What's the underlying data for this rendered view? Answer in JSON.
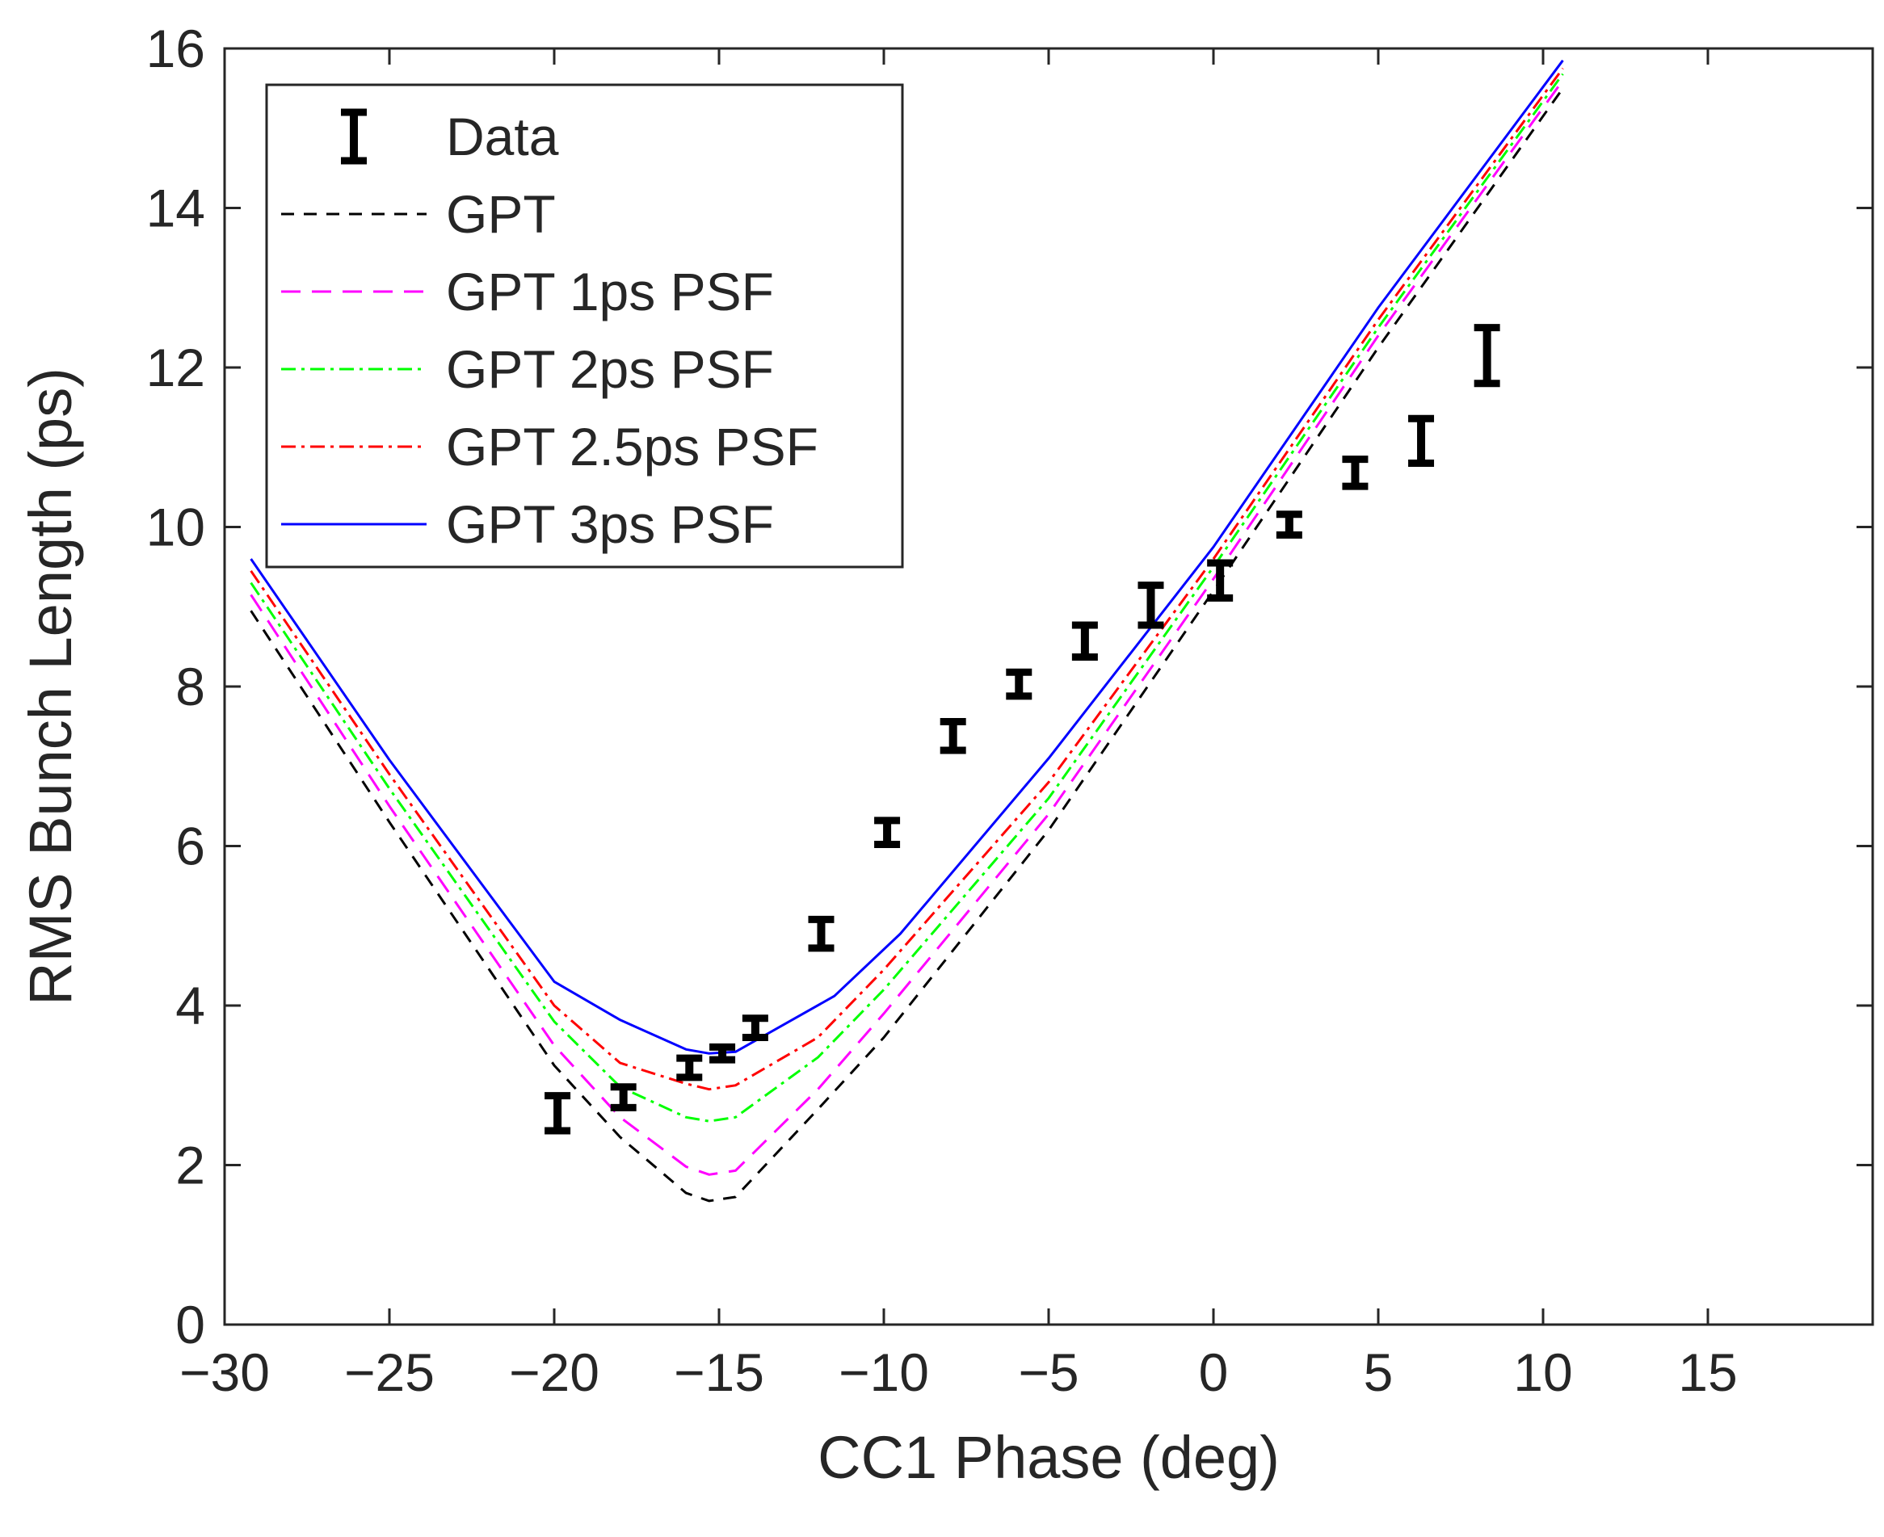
{
  "chart_data": {
    "type": "line",
    "title": "",
    "xlabel": "CC1 Phase (deg)",
    "ylabel": "RMS Bunch Length (ps)",
    "xlim": [
      -30,
      20
    ],
    "ylim": [
      0,
      16
    ],
    "xticks": [
      -30,
      -25,
      -20,
      -15,
      -10,
      -5,
      0,
      5,
      10,
      15
    ],
    "yticks": [
      0,
      2,
      4,
      6,
      8,
      10,
      12,
      14,
      16
    ],
    "xtick_labels": [
      "−30",
      "−25",
      "−20",
      "−15",
      "−10",
      "−5",
      "0",
      "5",
      "10",
      "15"
    ],
    "ytick_labels": [
      "0",
      "2",
      "4",
      "6",
      "8",
      "10",
      "12",
      "14",
      "16"
    ],
    "legend_position": "top-left",
    "errorbar_series": {
      "name": "Data",
      "color": "#000000",
      "points": [
        {
          "x": -19.9,
          "y": 2.65,
          "err": 0.22
        },
        {
          "x": -17.9,
          "y": 2.85,
          "err": 0.13
        },
        {
          "x": -15.9,
          "y": 3.22,
          "err": 0.12
        },
        {
          "x": -14.9,
          "y": 3.4,
          "err": 0.08
        },
        {
          "x": -13.9,
          "y": 3.72,
          "err": 0.12
        },
        {
          "x": -11.9,
          "y": 4.9,
          "err": 0.18
        },
        {
          "x": -9.9,
          "y": 6.17,
          "err": 0.15
        },
        {
          "x": -7.9,
          "y": 7.38,
          "err": 0.18
        },
        {
          "x": -5.9,
          "y": 8.03,
          "err": 0.15
        },
        {
          "x": -3.9,
          "y": 8.57,
          "err": 0.2
        },
        {
          "x": -1.9,
          "y": 9.02,
          "err": 0.25
        },
        {
          "x": 0.2,
          "y": 9.33,
          "err": 0.22
        },
        {
          "x": 2.3,
          "y": 10.03,
          "err": 0.13
        },
        {
          "x": 4.3,
          "y": 10.68,
          "err": 0.17
        },
        {
          "x": 6.3,
          "y": 11.08,
          "err": 0.28
        },
        {
          "x": 8.3,
          "y": 12.15,
          "err": 0.35
        }
      ]
    },
    "series": [
      {
        "name": "GPT",
        "color": "#000000",
        "dash": "16,12",
        "x": [
          -29.2,
          -25,
          -20,
          -18,
          -16,
          -15.3,
          -14.5,
          -12,
          -10,
          -5,
          0,
          5,
          10.6
        ],
        "y": [
          8.95,
          6.3,
          3.25,
          2.35,
          1.65,
          1.55,
          1.6,
          2.7,
          3.6,
          6.2,
          9.2,
          12.25,
          15.5
        ]
      },
      {
        "name": "GPT 1ps PSF",
        "color": "#ff00ff",
        "dash": "24,14",
        "x": [
          -29.2,
          -25,
          -20,
          -18,
          -16,
          -15.3,
          -14.5,
          -12,
          -10,
          -5,
          0,
          5,
          10.6
        ],
        "y": [
          9.15,
          6.5,
          3.5,
          2.6,
          1.98,
          1.88,
          1.93,
          2.95,
          3.9,
          6.4,
          9.35,
          12.4,
          15.6
        ]
      },
      {
        "name": "GPT 2ps PSF",
        "color": "#00ff00",
        "dash": "18,7,4,7",
        "x": [
          -29.2,
          -25,
          -20,
          -18,
          -16,
          -15.3,
          -14.5,
          -12,
          -10,
          -5,
          0,
          5,
          10.6
        ],
        "y": [
          9.3,
          6.72,
          3.8,
          2.98,
          2.6,
          2.55,
          2.6,
          3.35,
          4.2,
          6.6,
          9.5,
          12.5,
          15.68
        ]
      },
      {
        "name": "GPT 2.5ps PSF",
        "color": "#ff0000",
        "dash": "18,7,4,7",
        "x": [
          -29.2,
          -25,
          -20,
          -18,
          -16,
          -15.3,
          -14.5,
          -12,
          -10,
          -5,
          0,
          5,
          10.6
        ],
        "y": [
          9.45,
          6.9,
          4.0,
          3.28,
          3.02,
          2.95,
          3.0,
          3.6,
          4.45,
          6.8,
          9.6,
          12.6,
          15.75
        ]
      },
      {
        "name": "GPT 3ps PSF",
        "color": "#0000ff",
        "dash": "",
        "x": [
          -29.2,
          -25,
          -20,
          -18,
          -16,
          -15.3,
          -14.5,
          -11.5,
          -9.5,
          -5,
          0,
          5,
          10.6
        ],
        "y": [
          9.6,
          7.08,
          4.3,
          3.82,
          3.45,
          3.4,
          3.42,
          4.12,
          4.9,
          7.1,
          9.75,
          12.75,
          15.85
        ]
      }
    ]
  }
}
